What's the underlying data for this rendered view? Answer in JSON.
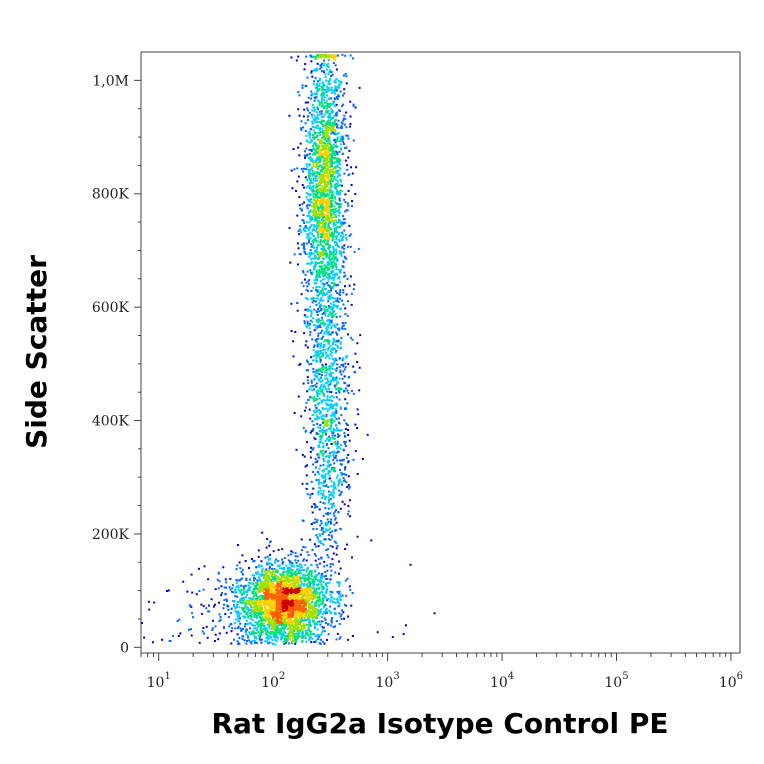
{
  "chart_data": {
    "type": "scatter",
    "xlabel": "Rat IgG2a Isotype Control PE",
    "ylabel": "Side Scatter",
    "x_scale": "log",
    "xlim": [
      7,
      1200000
    ],
    "ylim": [
      -10000,
      1050000
    ],
    "grid": false,
    "x_ticks": [
      {
        "value": 10,
        "base": "10",
        "exp": "1"
      },
      {
        "value": 100,
        "base": "10",
        "exp": "2"
      },
      {
        "value": 1000,
        "base": "10",
        "exp": "3"
      },
      {
        "value": 10000,
        "base": "10",
        "exp": "4"
      },
      {
        "value": 100000,
        "base": "10",
        "exp": "5"
      },
      {
        "value": 1000000,
        "base": "10",
        "exp": "6"
      }
    ],
    "y_ticks": [
      {
        "value": 0,
        "label": "0"
      },
      {
        "value": 200000,
        "label": "200K"
      },
      {
        "value": 400000,
        "label": "400K"
      },
      {
        "value": 600000,
        "label": "600K"
      },
      {
        "value": 800000,
        "label": "800K"
      },
      {
        "value": 1000000,
        "label": "1,0M"
      }
    ],
    "density_colormap": [
      "#0000cc",
      "#0066ff",
      "#00ccff",
      "#00e080",
      "#a0e000",
      "#ffd000",
      "#ff6000",
      "#cc0000"
    ],
    "populations": [
      {
        "name": "",
        "x_center_log10": 2.1,
        "x_spread_log10": 0.2,
        "y_center": 80000,
        "y_spread": 35000,
        "fraction": 0.42
      },
      {
        "name": "",
        "x_center_log10": 2.45,
        "x_spread_log10": 0.09,
        "y_center": 800000,
        "y_spread": 130000,
        "fraction": 0.38
      },
      {
        "name": "",
        "x_center_log10": 2.48,
        "x_spread_log10": 0.1,
        "y_center": 400000,
        "y_spread": 130000,
        "fraction": 0.16
      },
      {
        "name": "",
        "x_center_log10": 1.9,
        "x_spread_log10": 0.45,
        "y_center": 60000,
        "y_spread": 40000,
        "fraction": 0.04
      }
    ]
  }
}
